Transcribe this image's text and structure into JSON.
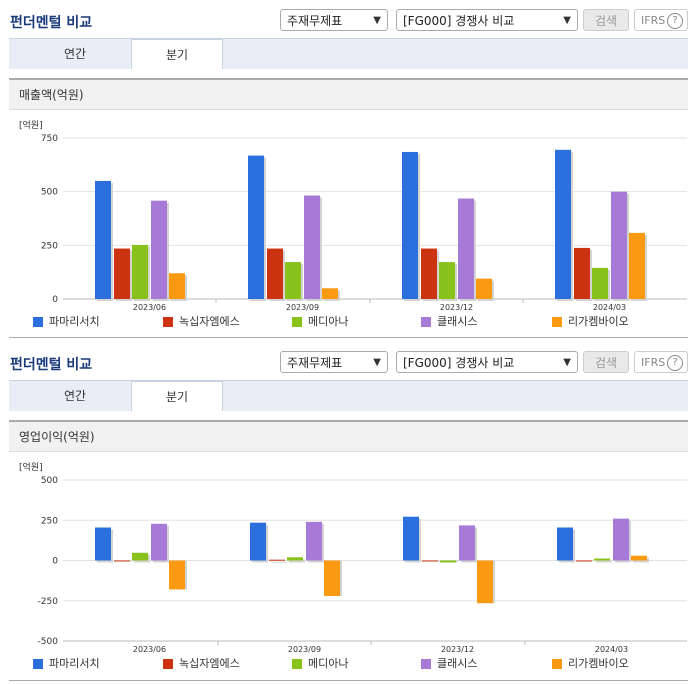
{
  "sections": [
    {
      "header_title": "펀더멘털 비교",
      "select1": "주재무제표",
      "select2": "[FG000] 경쟁사 비교",
      "search_label": "검색",
      "ifrs_label": "IFRS",
      "help_glyph": "?",
      "tabs": [
        "연간",
        "분기"
      ],
      "active_tab": "분기",
      "chart_title": "매출액(억원)"
    },
    {
      "header_title": "펀더멘털 비교",
      "select1": "주재무제표",
      "select2": "[FG000] 경쟁사 비교",
      "search_label": "검색",
      "ifrs_label": "IFRS",
      "help_glyph": "?",
      "tabs": [
        "연간",
        "분기"
      ],
      "active_tab": "분기",
      "chart_title": "영업이익(억원)"
    }
  ],
  "colors": {
    "파마리서치": "#2a6fdb",
    "녹십자엠에스": "#cc3311",
    "메디아나": "#88c21a",
    "클래시스": "#a77ad8",
    "리가켐바이오": "#f99a12"
  },
  "chart_data": [
    {
      "type": "bar",
      "unit_label": "[억원]",
      "categories": [
        "2023/06",
        "2023/09",
        "2023/12",
        "2024/03"
      ],
      "ylim": [
        0,
        750
      ],
      "yticks": [
        0,
        250,
        500,
        750
      ],
      "series": [
        {
          "name": "파마리서치",
          "values": [
            550,
            668,
            685,
            695
          ]
        },
        {
          "name": "녹십자엠에스",
          "values": [
            235,
            235,
            235,
            238
          ]
        },
        {
          "name": "메디아나",
          "values": [
            252,
            172,
            172,
            145
          ]
        },
        {
          "name": "클래시스",
          "values": [
            458,
            482,
            468,
            500
          ]
        },
        {
          "name": "리가켐바이오",
          "values": [
            120,
            50,
            95,
            308
          ]
        }
      ]
    },
    {
      "type": "bar",
      "unit_label": "[억원]",
      "categories": [
        "2023/06",
        "2023/09",
        "2023/12",
        "2024/03"
      ],
      "ylim": [
        -500,
        500
      ],
      "yticks": [
        -500,
        -250,
        0,
        250,
        500
      ],
      "series": [
        {
          "name": "파마리서치",
          "values": [
            205,
            235,
            272,
            205
          ]
        },
        {
          "name": "녹십자엠에스",
          "values": [
            -3,
            5,
            -5,
            -3
          ]
        },
        {
          "name": "메디아나",
          "values": [
            48,
            20,
            -12,
            12
          ]
        },
        {
          "name": "클래시스",
          "values": [
            228,
            240,
            218,
            260
          ]
        },
        {
          "name": "리가켐바이오",
          "values": [
            -180,
            -220,
            -265,
            30
          ]
        }
      ]
    }
  ]
}
